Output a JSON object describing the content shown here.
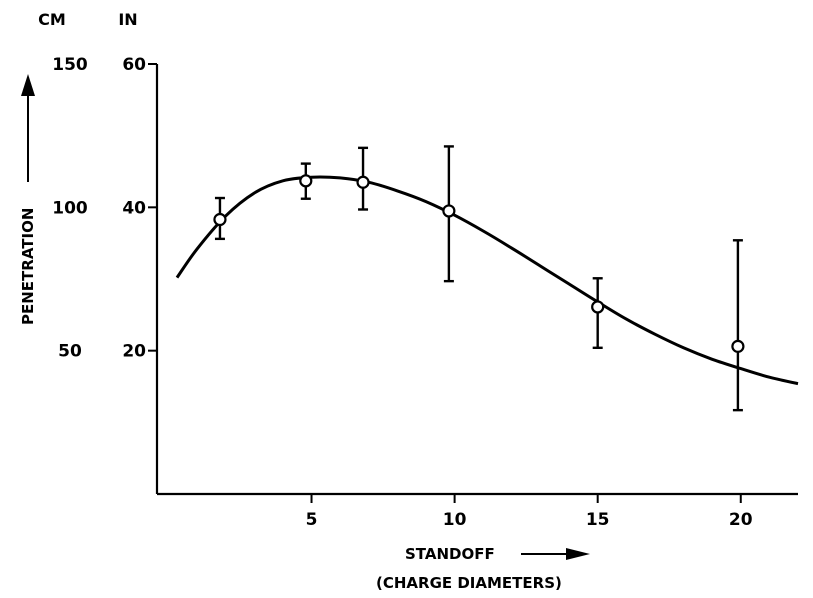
{
  "chart_data": {
    "type": "line",
    "xlabel": "STANDOFF",
    "xlabel_sub": "(CHARGE DIAMETERS)",
    "ylabel": "PENETRATION",
    "y_units_left": "CM",
    "y_units_right": "IN",
    "xlim": [
      -0.4,
      22
    ],
    "ylim_in": [
      0,
      60
    ],
    "x_ticks": [
      5,
      10,
      15,
      20
    ],
    "x_tick_labels": [
      "5",
      "10",
      "15",
      "20"
    ],
    "y_ticks_in": [
      20,
      40,
      60
    ],
    "y_tick_labels_in": [
      "20",
      "40",
      "60"
    ],
    "y_tick_labels_cm": [
      "50",
      "100",
      "150"
    ],
    "grid": false,
    "series": [
      {
        "type": "line",
        "points": [
          {
            "x": 0.3,
            "y": 30.2
          },
          {
            "x": 1,
            "y": 34.2
          },
          {
            "x": 2,
            "y": 38.8
          },
          {
            "x": 3,
            "y": 42.0
          },
          {
            "x": 4,
            "y": 43.7
          },
          {
            "x": 5,
            "y": 44.2
          },
          {
            "x": 6,
            "y": 44.1
          },
          {
            "x": 7,
            "y": 43.5
          },
          {
            "x": 8,
            "y": 42.3
          },
          {
            "x": 9,
            "y": 40.8
          },
          {
            "x": 10,
            "y": 38.9
          },
          {
            "x": 11,
            "y": 36.7
          },
          {
            "x": 12,
            "y": 34.3
          },
          {
            "x": 13,
            "y": 31.8
          },
          {
            "x": 14,
            "y": 29.3
          },
          {
            "x": 15,
            "y": 26.8
          },
          {
            "x": 16,
            "y": 24.4
          },
          {
            "x": 17,
            "y": 22.3
          },
          {
            "x": 18,
            "y": 20.4
          },
          {
            "x": 19,
            "y": 18.8
          },
          {
            "x": 20,
            "y": 17.5
          },
          {
            "x": 21,
            "y": 16.3
          },
          {
            "x": 22,
            "y": 15.4
          }
        ]
      },
      {
        "type": "errorbar",
        "points": [
          {
            "x": 1.8,
            "y": 38.3,
            "low": 35.6,
            "high": 41.3
          },
          {
            "x": 4.8,
            "y": 43.7,
            "low": 41.2,
            "high": 46.1
          },
          {
            "x": 6.8,
            "y": 43.5,
            "low": 39.7,
            "high": 48.3
          },
          {
            "x": 9.8,
            "y": 39.5,
            "low": 29.7,
            "high": 48.5
          },
          {
            "x": 15,
            "y": 26.1,
            "low": 20.4,
            "high": 30.1
          },
          {
            "x": 19.9,
            "y": 20.6,
            "low": 11.7,
            "high": 35.4
          }
        ]
      }
    ]
  }
}
